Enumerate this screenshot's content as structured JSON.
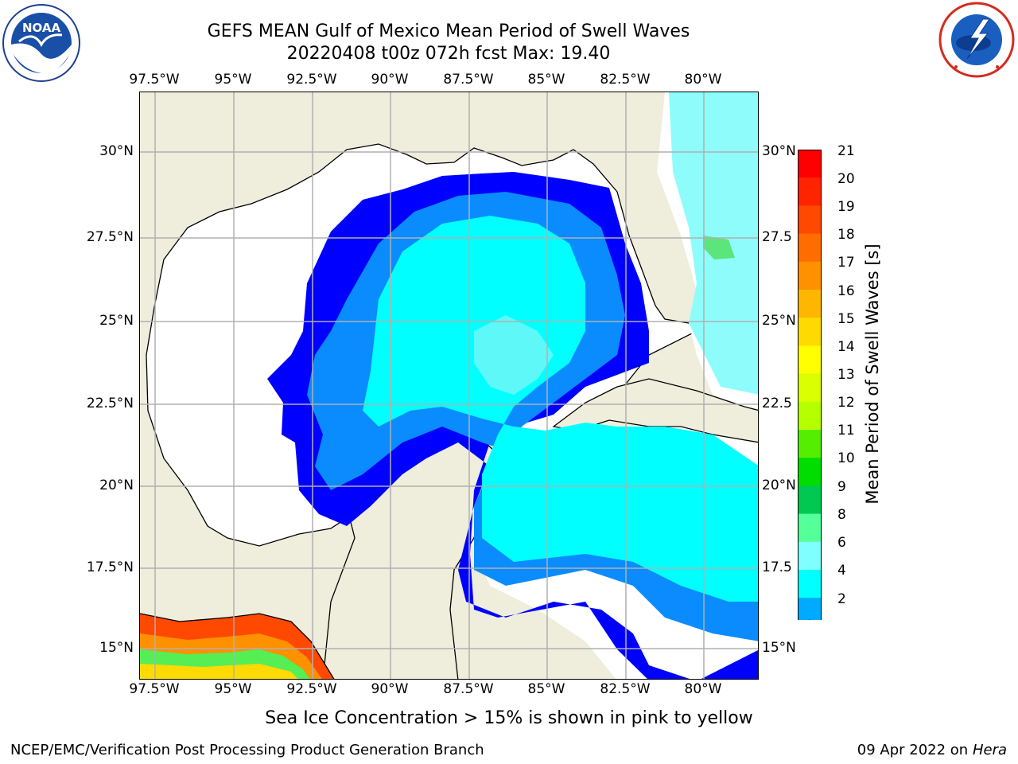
{
  "title_line1": "GEFS MEAN Gulf of Mexico Mean Period of Swell Waves",
  "title_line2": "20220408 t00z 072h fcst   Max: 19.40",
  "logos": {
    "left": "noaa-logo",
    "right": "nws-logo"
  },
  "lon_labels": [
    "97.5°W",
    "95°W",
    "92.5°W",
    "90°W",
    "87.5°W",
    "85°W",
    "82.5°W",
    "80°W"
  ],
  "lat_labels_left": [
    "30°N",
    "27.5°N",
    "25°N",
    "22.5°N",
    "20°N",
    "17.5°N",
    "15°N"
  ],
  "lat_labels_right": [
    "30°N",
    "27.5",
    "25°N",
    "22.5",
    "20°N",
    "17.5",
    "15°N"
  ],
  "colorbar": {
    "label": "Mean Period of Swell Waves [s]",
    "ticks": [
      "21",
      "20",
      "19",
      "18",
      "17",
      "16",
      "15",
      "14",
      "13",
      "12",
      "11",
      "10",
      "9",
      "8",
      "6",
      "4",
      "2"
    ],
    "colors": [
      "#ff0000",
      "#ff2400",
      "#ff4800",
      "#ff6d00",
      "#ff9100",
      "#ffb600",
      "#ffda00",
      "#ffff00",
      "#daff00",
      "#b6ff00",
      "#55ee00",
      "#00dd00",
      "#00c851",
      "#55ff99",
      "#7fffff",
      "#00ffff",
      "#00aaff",
      "#0066ff"
    ],
    "extend": "min"
  },
  "note": "Sea Ice Concentration > 15% is shown in pink to yellow",
  "footer_left": "NCEP/EMC/Verification Post Processing Product Generation Branch",
  "footer_date": "09 Apr 2022 on ",
  "footer_host": "Hera",
  "colors": {
    "land": "#efeddc",
    "ocean_nodata": "#ffffff",
    "grid": "#b0b0b0"
  }
}
